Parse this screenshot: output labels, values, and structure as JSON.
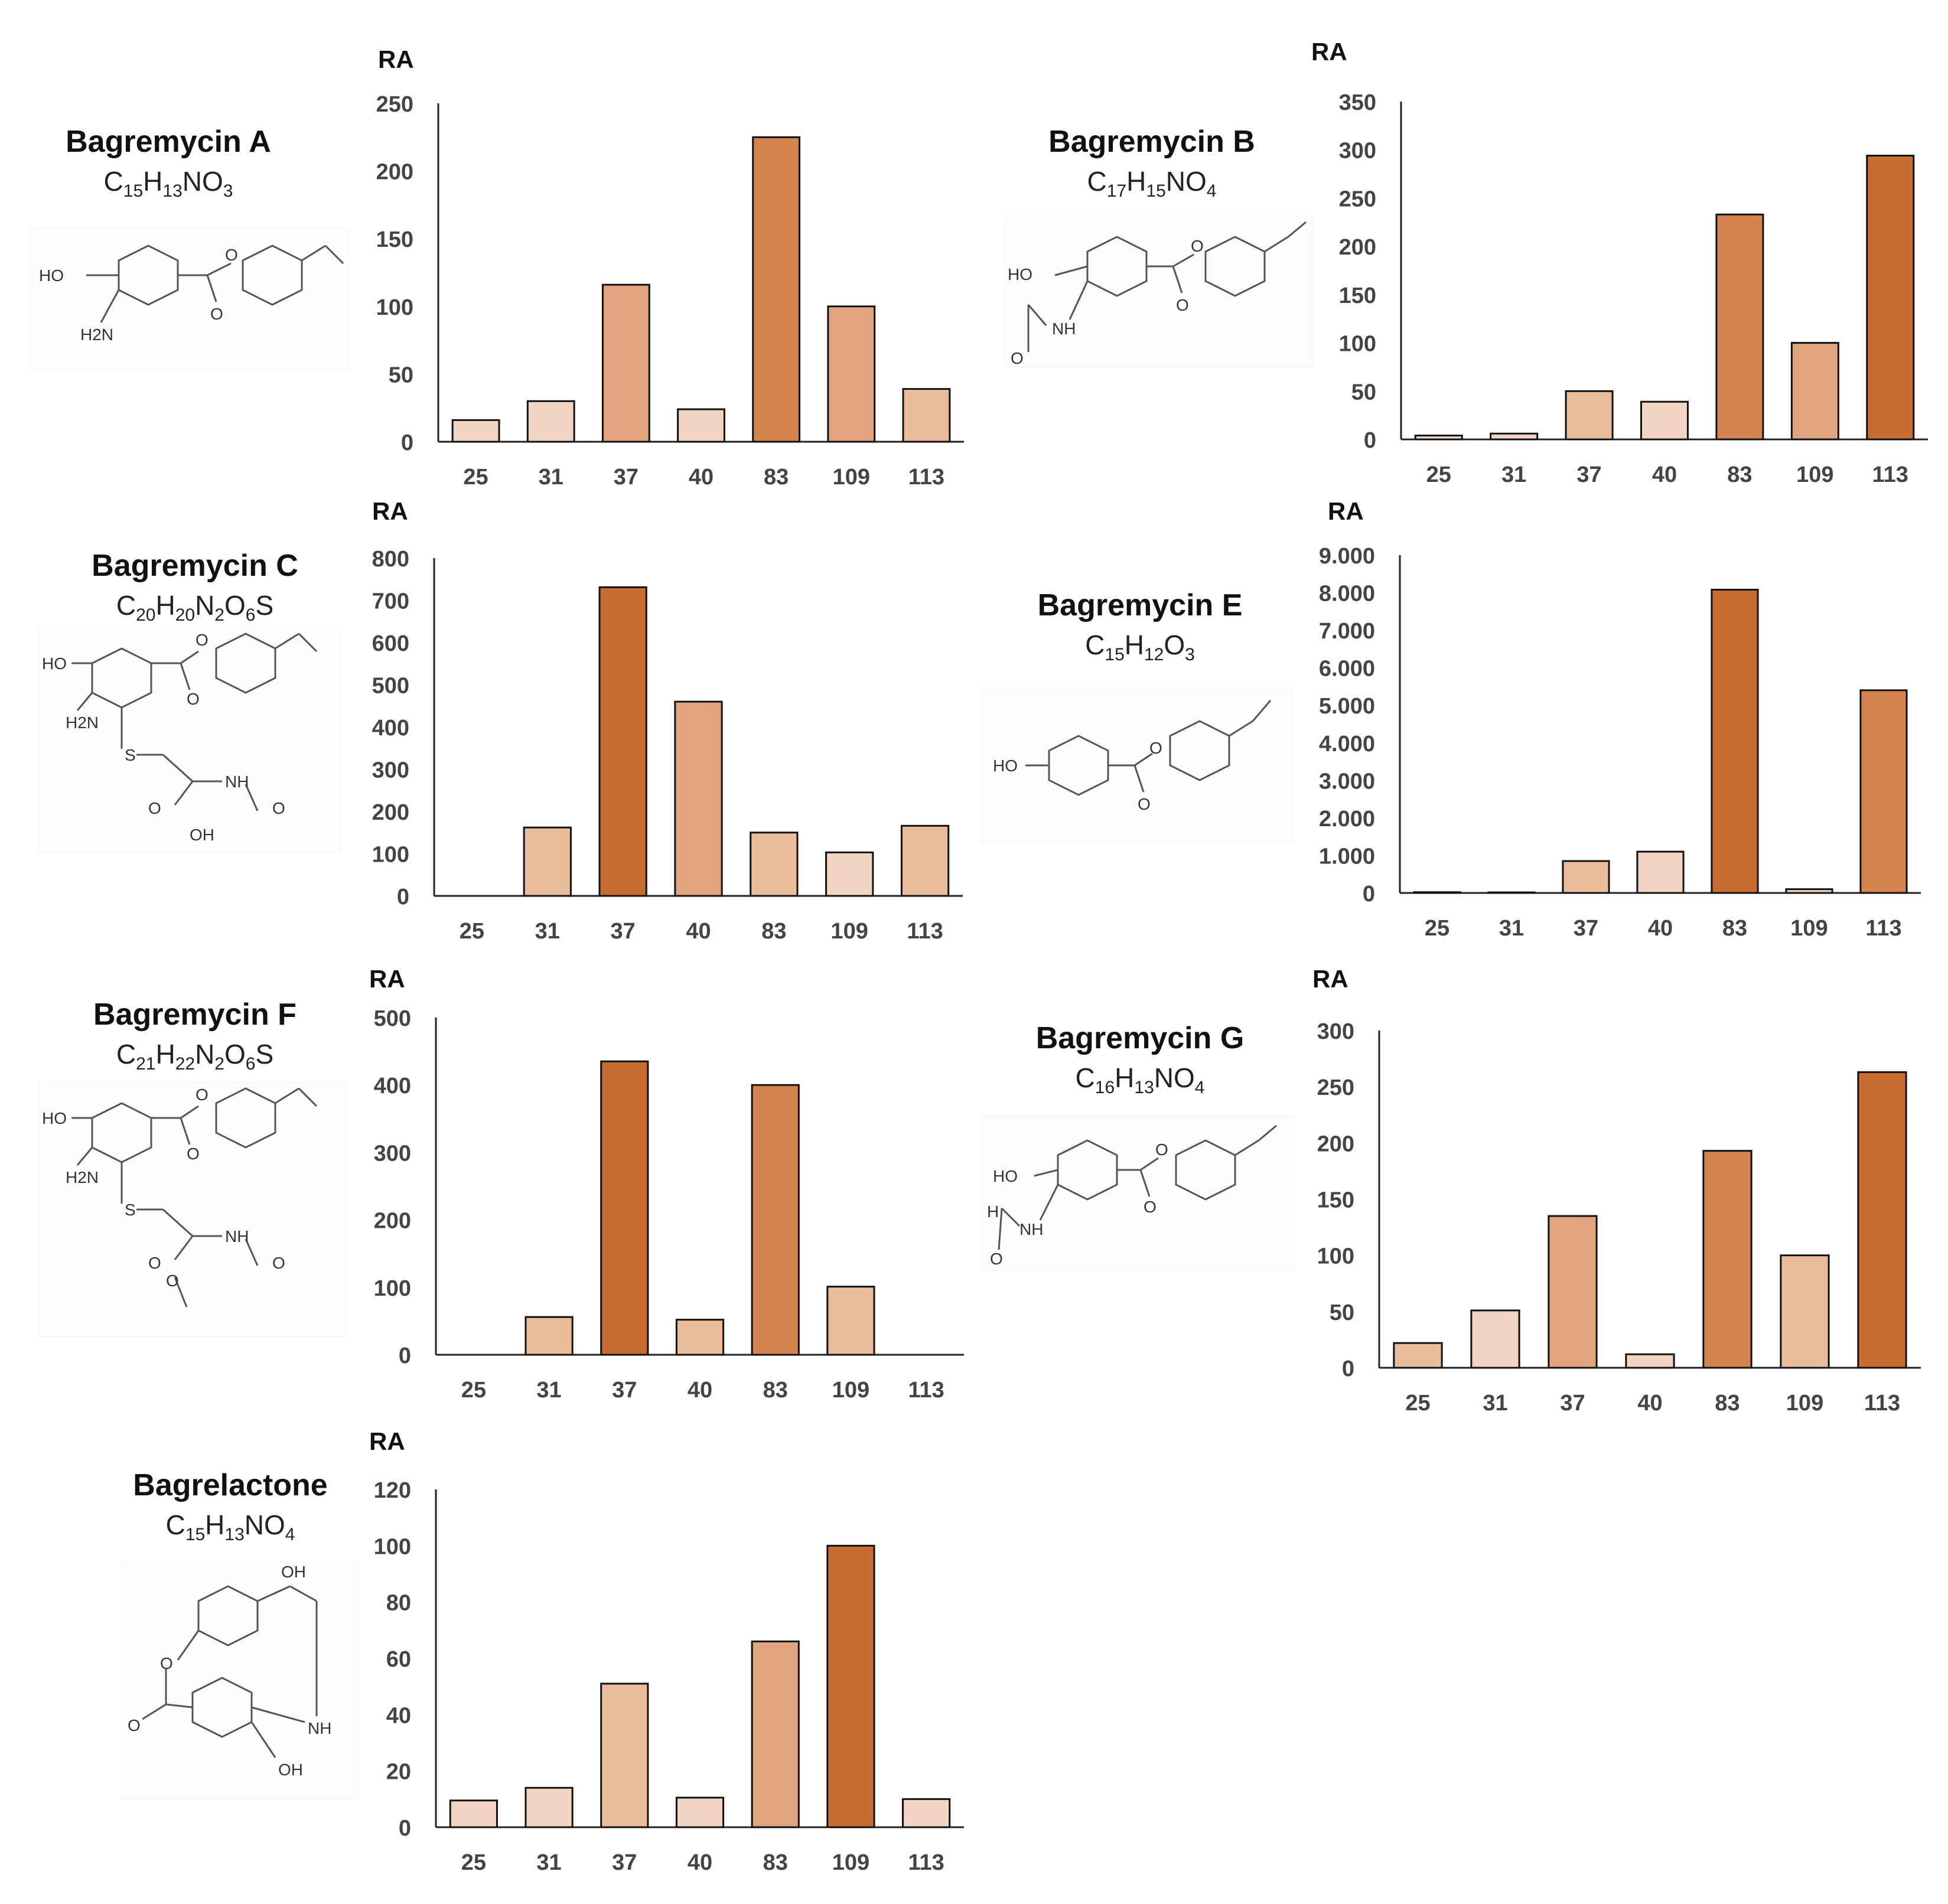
{
  "colors": {
    "c1": "#F2D4C2",
    "c2": "#E9BC9C",
    "c3": "#E0A57E",
    "c4": "#D4854F",
    "c5": "#C86D32"
  },
  "panels": [
    {
      "name": "Bagremycin A",
      "formula": [
        [
          "C",
          ""
        ],
        [
          "",
          "15"
        ],
        [
          "H",
          ""
        ],
        [
          "",
          "13"
        ],
        [
          "NO",
          ""
        ],
        [
          "",
          "3"
        ]
      ],
      "formula_text": "C15H13NO3",
      "mol_labels": [
        "HO",
        "O",
        "O",
        "H2N"
      ]
    },
    {
      "name": "Bagremycin B",
      "formula": [
        [
          "C",
          ""
        ],
        [
          "",
          "17"
        ],
        [
          "H",
          ""
        ],
        [
          "",
          "15"
        ],
        [
          "NO",
          ""
        ],
        [
          "",
          "4"
        ]
      ],
      "formula_text": "C17H15NO4",
      "mol_labels": [
        "HO",
        "O",
        "O",
        "NH",
        "O"
      ]
    },
    {
      "name": "Bagremycin C",
      "formula": [
        [
          "C",
          ""
        ],
        [
          "",
          "20"
        ],
        [
          "H",
          ""
        ],
        [
          "",
          "20"
        ],
        [
          "N",
          ""
        ],
        [
          "",
          "2"
        ],
        [
          "O",
          ""
        ],
        [
          "",
          "6"
        ],
        [
          "S",
          ""
        ]
      ],
      "formula_text": "C20H20N2O6S",
      "mol_labels": [
        "HO",
        "O",
        "O",
        "H2N",
        "S",
        "NH",
        "O",
        "O",
        "OH"
      ]
    },
    {
      "name": "Bagremycin E",
      "formula": [
        [
          "C",
          ""
        ],
        [
          "",
          "15"
        ],
        [
          "H",
          ""
        ],
        [
          "",
          "12"
        ],
        [
          "O",
          ""
        ],
        [
          "",
          "3"
        ]
      ],
      "formula_text": "C15H12O3",
      "mol_labels": [
        "HO",
        "O",
        "O"
      ]
    },
    {
      "name": "Bagremycin F",
      "formula": [
        [
          "C",
          ""
        ],
        [
          "",
          "21"
        ],
        [
          "H",
          ""
        ],
        [
          "",
          "22"
        ],
        [
          "N",
          ""
        ],
        [
          "",
          "2"
        ],
        [
          "O",
          ""
        ],
        [
          "",
          "6"
        ],
        [
          "S",
          ""
        ]
      ],
      "formula_text": "C21H22N2O6S",
      "mol_labels": [
        "HO",
        "O",
        "O",
        "H2N",
        "S",
        "NH",
        "O",
        "O",
        "O"
      ]
    },
    {
      "name": "Bagremycin G",
      "formula": [
        [
          "C",
          ""
        ],
        [
          "",
          "16"
        ],
        [
          "H",
          ""
        ],
        [
          "",
          "13"
        ],
        [
          "NO",
          ""
        ],
        [
          "",
          "4"
        ]
      ],
      "formula_text": "C16H13NO4",
      "mol_labels": [
        "HO",
        "O",
        "O",
        "H",
        "NH",
        "O"
      ]
    },
    {
      "name": "Bagrelactone",
      "formula": [
        [
          "C",
          ""
        ],
        [
          "",
          "15"
        ],
        [
          "H",
          ""
        ],
        [
          "",
          "13"
        ],
        [
          "NO",
          ""
        ],
        [
          "",
          "4"
        ]
      ],
      "formula_text": "C15H13NO4",
      "mol_labels": [
        "OH",
        "O",
        "O",
        "NH",
        "OH"
      ]
    }
  ],
  "chart_data": [
    {
      "type": "bar",
      "title": "Bagremycin A",
      "ylabel": "RA",
      "categories": [
        "25",
        "31",
        "37",
        "40",
        "83",
        "109",
        "113"
      ],
      "values": [
        16,
        30,
        116,
        24,
        225,
        100,
        39
      ],
      "ylim": [
        0,
        250
      ],
      "yticks": [
        "0",
        "50",
        "100",
        "150",
        "200",
        "250"
      ],
      "tickvals": [
        0,
        50,
        100,
        150,
        200,
        250
      ],
      "shades": [
        "c1",
        "c1",
        "c3",
        "c1",
        "c4",
        "c3",
        "c2"
      ]
    },
    {
      "type": "bar",
      "title": "Bagremycin B",
      "ylabel": "RA",
      "categories": [
        "25",
        "31",
        "37",
        "40",
        "83",
        "109",
        "113"
      ],
      "values": [
        4,
        6,
        50,
        39,
        233,
        100,
        294
      ],
      "ylim": [
        0,
        350
      ],
      "yticks": [
        "0",
        "50",
        "100",
        "150",
        "200",
        "250",
        "300",
        "350"
      ],
      "tickvals": [
        0,
        50,
        100,
        150,
        200,
        250,
        300,
        350
      ],
      "shades": [
        "c1",
        "c1",
        "c2",
        "c1",
        "c4",
        "c3",
        "c5"
      ]
    },
    {
      "type": "bar",
      "title": "Bagremycin C",
      "ylabel": "RA",
      "categories": [
        "25",
        "31",
        "37",
        "40",
        "83",
        "109",
        "113"
      ],
      "values": [
        0,
        162,
        731,
        460,
        150,
        103,
        166
      ],
      "ylim": [
        0,
        800
      ],
      "yticks": [
        "0",
        "100",
        "200",
        "300",
        "400",
        "500",
        "600",
        "700",
        "800"
      ],
      "tickvals": [
        0,
        100,
        200,
        300,
        400,
        500,
        600,
        700,
        800
      ],
      "shades": [
        "c1",
        "c2",
        "c5",
        "c3",
        "c2",
        "c1",
        "c2"
      ]
    },
    {
      "type": "bar",
      "title": "Bagremycin E",
      "ylabel": "RA",
      "categories": [
        "25",
        "31",
        "37",
        "40",
        "83",
        "109",
        "113"
      ],
      "values": [
        20,
        15,
        850,
        1100,
        8080,
        100,
        5400
      ],
      "ylim": [
        0,
        9000
      ],
      "yticks": [
        "0",
        "1.000",
        "2.000",
        "3.000",
        "4.000",
        "5.000",
        "6.000",
        "7.000",
        "8.000",
        "9.000"
      ],
      "tickvals": [
        0,
        1000,
        2000,
        3000,
        4000,
        5000,
        6000,
        7000,
        8000,
        9000
      ],
      "shades": [
        "c1",
        "c1",
        "c2",
        "c1",
        "c5",
        "c1",
        "c4"
      ]
    },
    {
      "type": "bar",
      "title": "Bagremycin F",
      "ylabel": "RA",
      "categories": [
        "25",
        "31",
        "37",
        "40",
        "83",
        "109",
        "113"
      ],
      "values": [
        0,
        56,
        435,
        52,
        400,
        101,
        0
      ],
      "ylim": [
        0,
        500
      ],
      "yticks": [
        "0",
        "100",
        "200",
        "300",
        "400",
        "500"
      ],
      "tickvals": [
        0,
        100,
        200,
        300,
        400,
        500
      ],
      "shades": [
        "c1",
        "c2",
        "c5",
        "c2",
        "c4",
        "c2",
        "c1"
      ]
    },
    {
      "type": "bar",
      "title": "Bagremycin G",
      "ylabel": "RA",
      "categories": [
        "25",
        "31",
        "37",
        "40",
        "83",
        "109",
        "113"
      ],
      "values": [
        22,
        51,
        135,
        12,
        193,
        100,
        263
      ],
      "ylim": [
        0,
        300
      ],
      "yticks": [
        "0",
        "50",
        "100",
        "150",
        "200",
        "250",
        "300"
      ],
      "tickvals": [
        0,
        50,
        100,
        150,
        200,
        250,
        300
      ],
      "shades": [
        "c2",
        "c1",
        "c3",
        "c1",
        "c4",
        "c2",
        "c5"
      ]
    },
    {
      "type": "bar",
      "title": "Bagrelactone",
      "ylabel": "RA",
      "categories": [
        "25",
        "31",
        "37",
        "40",
        "83",
        "109",
        "113"
      ],
      "values": [
        9.5,
        14,
        51,
        10.5,
        66,
        100,
        10
      ],
      "ylim": [
        0,
        120
      ],
      "yticks": [
        "0",
        "20",
        "40",
        "60",
        "80",
        "100",
        "120"
      ],
      "tickvals": [
        0,
        20,
        40,
        60,
        80,
        100,
        120
      ],
      "shades": [
        "c1",
        "c1",
        "c2",
        "c1",
        "c3",
        "c5",
        "c1"
      ]
    }
  ]
}
